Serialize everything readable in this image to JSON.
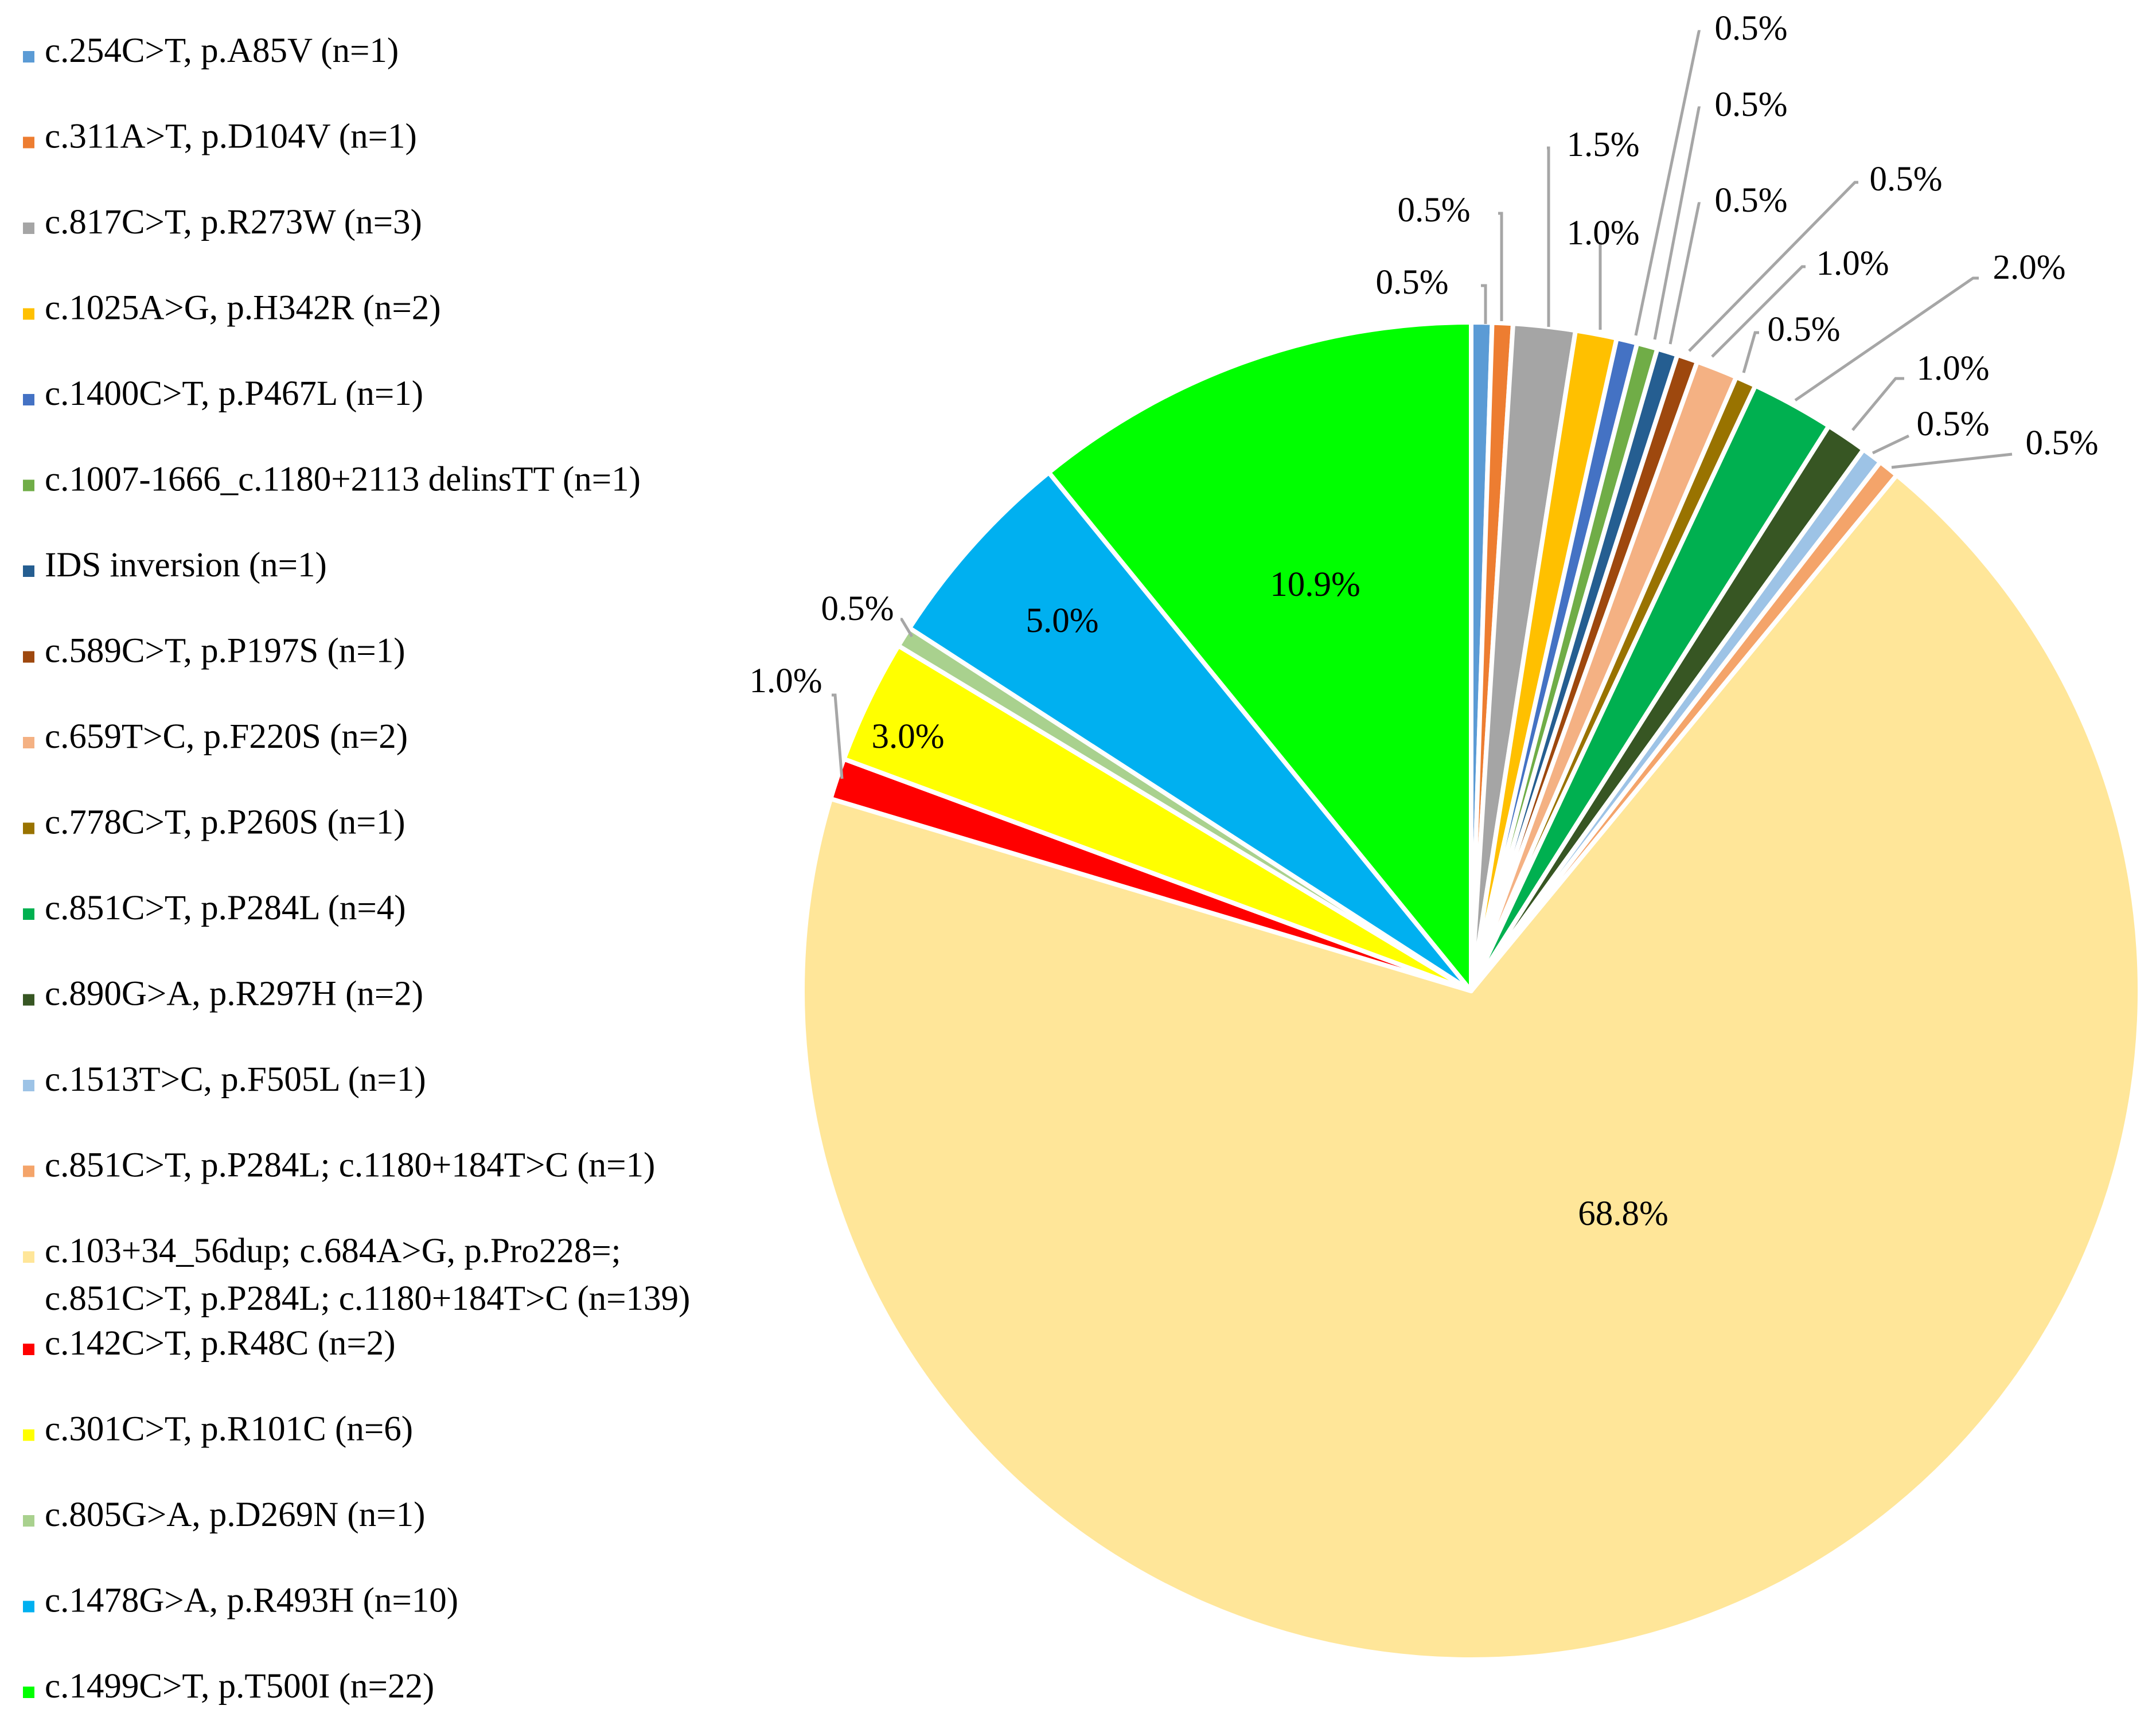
{
  "chart_data": {
    "type": "pie",
    "legend_position": "left",
    "slices": [
      {
        "label": "c.254C>T, p.A85V (n=1)",
        "value": 0.5,
        "n": 1,
        "color": "#5b9bd5"
      },
      {
        "label": "c.311A>T, p.D104V (n=1)",
        "value": 0.5,
        "n": 1,
        "color": "#ed7d31"
      },
      {
        "label": "c.817C>T, p.R273W (n=3)",
        "value": 1.5,
        "n": 3,
        "color": "#a5a5a5"
      },
      {
        "label": "c.1025A>G, p.H342R (n=2)",
        "value": 1.0,
        "n": 2,
        "color": "#ffc000"
      },
      {
        "label": "c.1400C>T, p.P467L (n=1)",
        "value": 0.5,
        "n": 1,
        "color": "#4472c4"
      },
      {
        "label": "c.1007-1666_c.1180+2113 delinsTT (n=1)",
        "value": 0.5,
        "n": 1,
        "color": "#70ad47"
      },
      {
        "label": "IDS inversion (n=1)",
        "value": 0.5,
        "n": 1,
        "color": "#255e91"
      },
      {
        "label": "c.589C>T, p.P197S (n=1)",
        "value": 0.5,
        "n": 1,
        "color": "#9e480e"
      },
      {
        "label": "c.659T>C, p.F220S (n=2)",
        "value": 1.0,
        "n": 2,
        "color": "#f4b183"
      },
      {
        "label": "c.778C>T, p.P260S (n=1)",
        "value": 0.5,
        "n": 1,
        "color": "#997300"
      },
      {
        "label": "c.851C>T, p.P284L (n=4)",
        "value": 2.0,
        "n": 4,
        "color": "#00b050"
      },
      {
        "label": "c.890G>A, p.R297H (n=2)",
        "value": 1.0,
        "n": 2,
        "color": "#375623"
      },
      {
        "label": "c.1513T>C, p.F505L (n=1)",
        "value": 0.5,
        "n": 1,
        "color": "#9dc3e6"
      },
      {
        "label": "c.851C>T, p.P284L; c.1180+184T>C (n=1)",
        "value": 0.5,
        "n": 1,
        "color": "#f4a46a"
      },
      {
        "label": "c.103+34_56dup; c.684A>G, p.Pro228=; c.851C>T, p.P284L; c.1180+184T>C (n=139)",
        "label_lines": [
          "c.103+34_56dup; c.684A>G, p.Pro228=;",
          "c.851C>T, p.P284L; c.1180+184T>C (n=139)"
        ],
        "value": 68.8,
        "n": 139,
        "color": "#ffe699"
      },
      {
        "label": "c.142C>T, p.R48C (n=2)",
        "value": 1.0,
        "n": 2,
        "color": "#ff0000"
      },
      {
        "label": "c.301C>T, p.R101C (n=6)",
        "value": 3.0,
        "n": 6,
        "color": "#ffff00"
      },
      {
        "label": "c.805G>A, p.D269N (n=1)",
        "value": 0.5,
        "n": 1,
        "color": "#a9d18e"
      },
      {
        "label": "c.1478G>A, p.R493H (n=10)",
        "value": 5.0,
        "n": 10,
        "color": "#00b0f0"
      },
      {
        "label": "c.1499C>T, p.T500I (n=22)",
        "value": 10.9,
        "n": 22,
        "color": "#00ff00"
      }
    ],
    "data_labels": [
      "0.5%",
      "0.5%",
      "1.5%",
      "1.0%",
      "0.5%",
      "0.5%",
      "0.5%",
      "0.5%",
      "1.0%",
      "0.5%",
      "2.0%",
      "1.0%",
      "0.5%",
      "0.5%",
      "68.8%",
      "1.0%",
      "3.0%",
      "0.5%",
      "5.0%",
      "10.9%"
    ]
  }
}
